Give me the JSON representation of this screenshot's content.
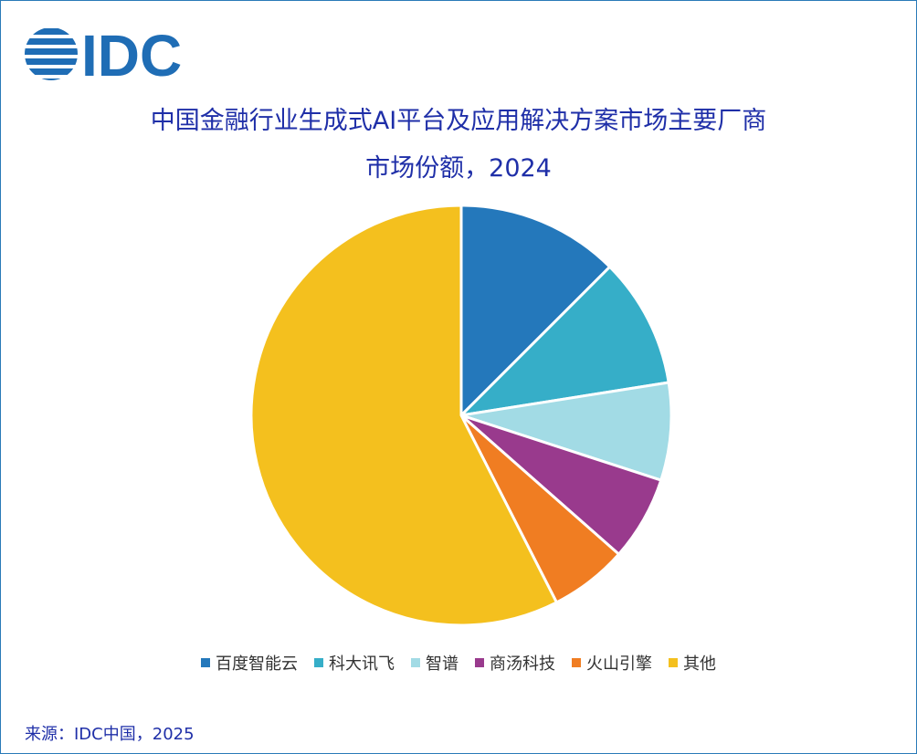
{
  "brand": {
    "logo_text": "IDC",
    "color": "#1f6db5"
  },
  "chart_data": {
    "type": "pie",
    "title_line1": "中国金融行业生成式AI平台及应用解决方案市场主要厂商",
    "title_line2": "市场份额，2024",
    "series": [
      {
        "name": "百度智能云",
        "value": 12.5,
        "color": "#2478bb"
      },
      {
        "name": "科大讯飞",
        "value": 10.0,
        "color": "#36aec8"
      },
      {
        "name": "智谱",
        "value": 7.5,
        "color": "#a2dbe5"
      },
      {
        "name": "商汤科技",
        "value": 6.5,
        "color": "#993a8d"
      },
      {
        "name": "火山引擎",
        "value": 6.0,
        "color": "#f07d22"
      },
      {
        "name": "其他",
        "value": 57.5,
        "color": "#f4c01e"
      }
    ],
    "legend_position": "bottom"
  },
  "footer": {
    "source": "来源：IDC中国，2025"
  }
}
